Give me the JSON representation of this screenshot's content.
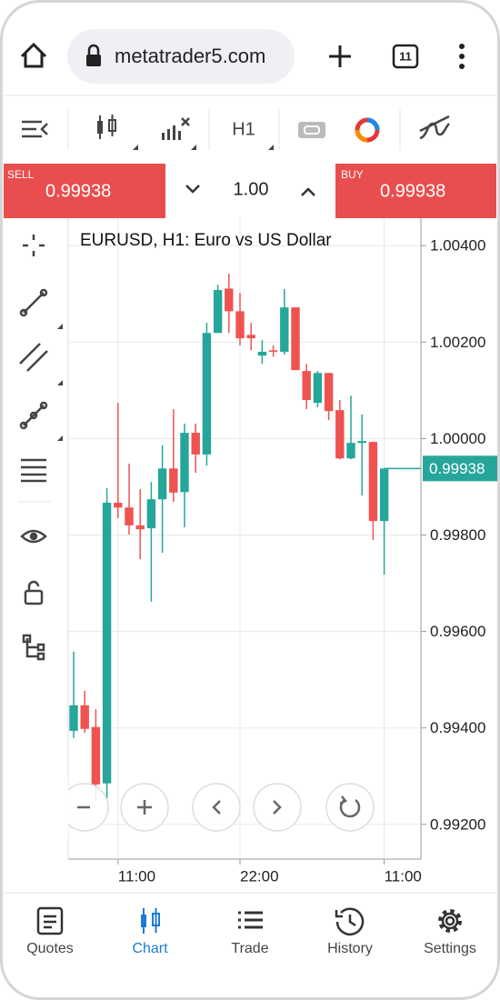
{
  "browser": {
    "url": "metatrader5.com",
    "tab_count": "11"
  },
  "toolbar": {
    "timeframe": "H1"
  },
  "trade_bar": {
    "sell_label": "SELL",
    "sell_price": "0.99938",
    "volume": "1.00",
    "buy_label": "BUY",
    "buy_price": "0.99938"
  },
  "chart_data": {
    "type": "candlestick",
    "title": "EURUSD, H1: Euro vs US Dollar",
    "categories": [
      null,
      null,
      null,
      null,
      "11:00",
      null,
      null,
      null,
      null,
      null,
      null,
      null,
      null,
      null,
      null,
      "22:00",
      null,
      null,
      null,
      null,
      null,
      null,
      null,
      null,
      null,
      null,
      null,
      null,
      "11:00"
    ],
    "open": [
      0.99394,
      0.99447,
      0.99402,
      0.99285,
      0.99867,
      0.99857,
      0.9982,
      0.99814,
      0.99874,
      0.99938,
      0.99889,
      1.00012,
      0.99967,
      1.00219,
      1.00311,
      1.00264,
      1.00215,
      1.00172,
      1.00183,
      1.0018,
      1.00272,
      1.0014,
      1.00074,
      1.00136,
      1.00059,
      0.99959,
      0.99991,
      0.99993,
      0.99829
    ],
    "high": [
      0.99558,
      0.99477,
      0.99439,
      0.99897,
      1.00074,
      0.99948,
      0.99895,
      0.9991,
      0.99986,
      1.00061,
      1.00031,
      1.00031,
      1.0024,
      1.00319,
      1.00342,
      1.00302,
      1.0024,
      1.00204,
      1.00193,
      1.0031,
      1.00272,
      1.00155,
      1.0014,
      1.00136,
      1.0008,
      1.00089,
      1.0005,
      0.99993,
      0.99938
    ],
    "low": [
      0.99379,
      0.9939,
      0.99251,
      0.99251,
      0.99835,
      0.99801,
      0.9975,
      0.99662,
      0.99763,
      0.99869,
      0.99816,
      0.99929,
      0.99944,
      1.00219,
      1.00219,
      1.00193,
      1.00183,
      1.00155,
      1.0017,
      1.00174,
      1.00142,
      1.00061,
      1.00065,
      1.00038,
      0.99957,
      0.99957,
      0.99882,
      0.9979,
      0.99718
    ],
    "close": [
      0.99447,
      0.99398,
      0.99283,
      0.99867,
      0.99857,
      0.9982,
      0.99812,
      0.99874,
      0.99938,
      0.99888,
      1.00012,
      0.99967,
      1.00219,
      1.00308,
      1.00264,
      1.00208,
      1.00208,
      1.0018,
      1.0018,
      1.00272,
      1.00142,
      1.0008,
      1.00136,
      1.00057,
      0.99959,
      0.99991,
      0.99995,
      0.99829,
      0.99938
    ],
    "up_color": "#26a69a",
    "down_color": "#ef5350",
    "ylim": [
      0.99128,
      1.00457
    ],
    "yticks": [
      {
        "value": 0.992,
        "label": "0.99200"
      },
      {
        "value": 0.994,
        "label": "0.99400"
      },
      {
        "value": 0.996,
        "label": "0.99600"
      },
      {
        "value": 0.998,
        "label": "0.99800"
      },
      {
        "value": 1.0,
        "label": "1.00000"
      },
      {
        "value": 1.002,
        "label": "1.00200"
      },
      {
        "value": 1.004,
        "label": "1.00400"
      }
    ],
    "last_price": {
      "value": 0.99938,
      "label": "0.99938"
    },
    "grid": true
  },
  "bottom_nav": {
    "items": [
      "Quotes",
      "Chart",
      "Trade",
      "History",
      "Settings"
    ],
    "active": 1,
    "active_color": "#1e7ad6"
  }
}
